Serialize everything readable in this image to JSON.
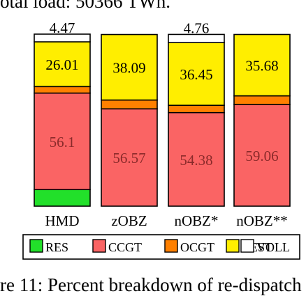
{
  "header_text": "otal load: 50366 TWh.",
  "footer_text": "re 11: Percent breakdown of re-dispatch",
  "colors": {
    "RES": "#22e02a",
    "CCGT": "#fa6464",
    "OCGT": "#ff8000",
    "REST": "#ffee00",
    "VOLL": "#ffffff"
  },
  "chart_data": {
    "type": "bar",
    "stacked": true,
    "categories": [
      "HMD",
      "zOBZ",
      "nOBZ*",
      "nOBZ**"
    ],
    "ylim": [
      0,
      100
    ],
    "series": [
      {
        "key": "RES",
        "name": "RES",
        "values": [
          9.63,
          0,
          0,
          0
        ],
        "labels": [
          "9.63",
          "",
          "",
          ""
        ]
      },
      {
        "key": "CCGT",
        "name": "CCGT",
        "values": [
          56.1,
          56.57,
          54.38,
          59.06
        ],
        "labels": [
          "56.1",
          "56.57",
          "54.38",
          "59.06"
        ]
      },
      {
        "key": "OCGT",
        "name": "OCGT",
        "values": [
          3.79,
          5.12,
          4.24,
          5.06
        ],
        "labels": [
          "3.79",
          "5.12",
          "4.24",
          "5.06"
        ]
      },
      {
        "key": "REST",
        "name": "REST",
        "values": [
          26.01,
          38.09,
          36.45,
          35.68
        ],
        "labels": [
          "26.01",
          "38.09",
          "36.45",
          "35.68"
        ]
      },
      {
        "key": "VOLL",
        "name": "VOLL",
        "values": [
          4.47,
          0,
          4.76,
          0
        ],
        "labels": [
          "4.47",
          "",
          "4.76",
          ""
        ]
      }
    ],
    "legend_placement": "bottom"
  }
}
